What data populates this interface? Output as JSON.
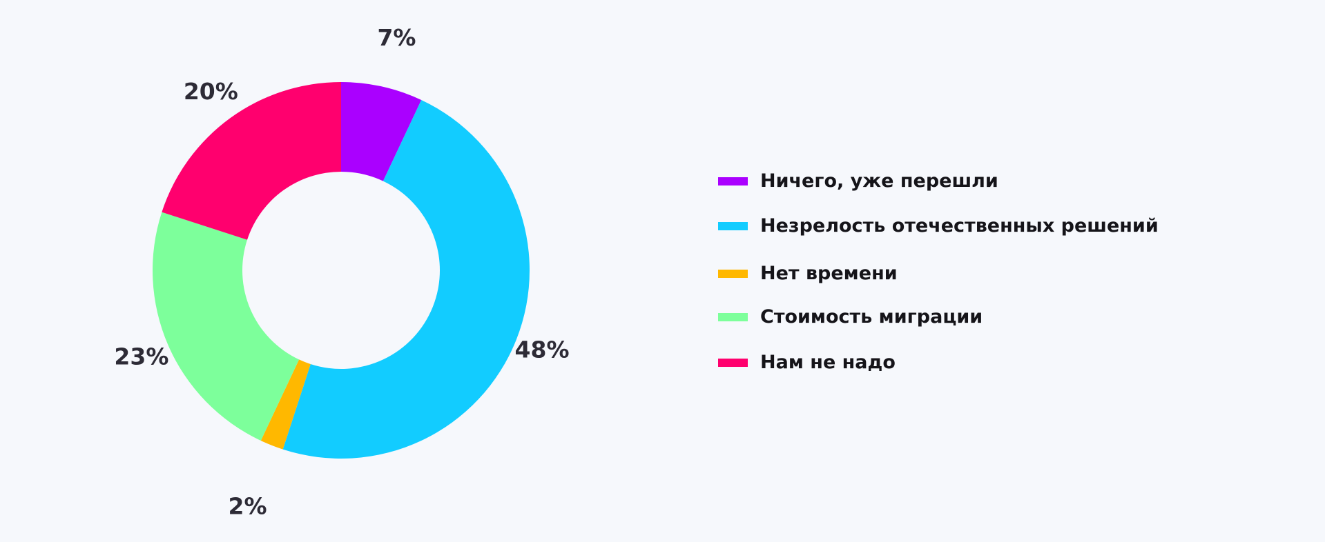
{
  "chart_data": {
    "type": "pie",
    "donut": true,
    "legend_position": "right",
    "start_angle_deg": 0,
    "slices": [
      {
        "name": "Ничего, уже перешли",
        "value": 7,
        "label": "7%",
        "color": "#aa00ff"
      },
      {
        "name": "Незрелость отечественных решений",
        "value": 48,
        "label": "48%",
        "color": "#12ccff"
      },
      {
        "name": "Нет времени",
        "value": 2,
        "label": "2%",
        "color": "#ffb800"
      },
      {
        "name": "Стоимость миграции",
        "value": 23,
        "label": "23%",
        "color": "#7dff9b"
      },
      {
        "name": "Нам не надо",
        "value": 20,
        "label": "20%",
        "color": "#ff006e"
      }
    ]
  }
}
